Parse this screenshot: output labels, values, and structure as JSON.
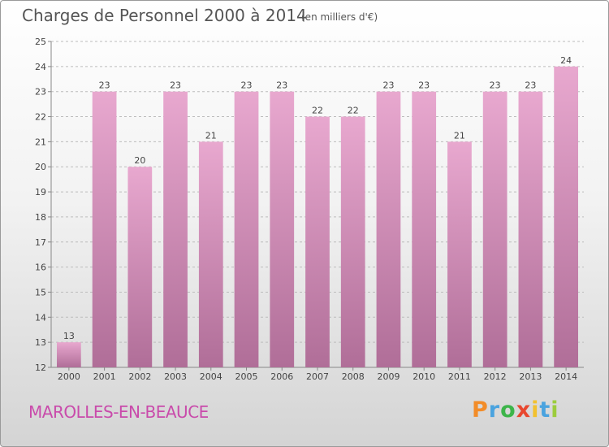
{
  "header": {
    "title": "Charges de Personnel 2000 à 2014",
    "subtitle": "(en milliers d'€)"
  },
  "footer": {
    "commune": "MAROLLES-EN-BEAUCE",
    "logo": "Proxiti"
  },
  "colors": {
    "bar_light": "#e8a8cf",
    "bar_dark": "#b06e98",
    "commune_text": "#c94bab",
    "logo_letters": [
      "#f28c28",
      "#4aa3df",
      "#3db54a",
      "#e8472f",
      "#f2c12e",
      "#4aa3df",
      "#9ccc3c"
    ]
  },
  "chart_data": {
    "type": "bar",
    "title": "Charges de Personnel 2000 à 2014",
    "subtitle": "(en milliers d'€)",
    "categories": [
      "2000",
      "2001",
      "2002",
      "2003",
      "2004",
      "2005",
      "2006",
      "2007",
      "2008",
      "2009",
      "2010",
      "2011",
      "2012",
      "2013",
      "2014"
    ],
    "values": [
      13,
      23,
      20,
      23,
      21,
      23,
      23,
      22,
      22,
      23,
      23,
      21,
      23,
      23,
      24
    ],
    "data_labels": [
      "13",
      "23",
      "20",
      "23",
      "21",
      "23",
      "23",
      "22",
      "22",
      "23",
      "23",
      "21",
      "23",
      "23",
      "24"
    ],
    "yticks": [
      "12",
      "13",
      "14",
      "15",
      "16",
      "17",
      "18",
      "19",
      "20",
      "21",
      "22",
      "23",
      "24",
      "25"
    ],
    "ylim": [
      12,
      25
    ],
    "xlabel": "",
    "ylabel": "",
    "grid": "horizontal dashed"
  }
}
